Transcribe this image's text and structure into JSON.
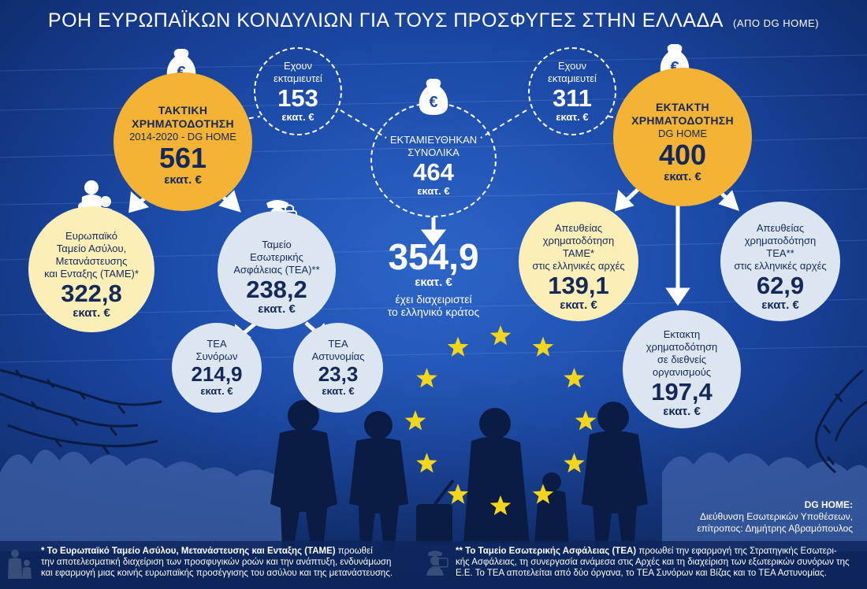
{
  "title": {
    "main": "ΡΟΗ ΕΥΡΩΠΑΪΚΩΝ ΚΟΝΔΥΛΙΩΝ ΓΙΑ ΤΟΥΣ ΠΡΟΣΦΥΓΕΣ ΣΤΗΝ ΕΛΛΑΔΑ",
    "sub": "(ΑΠΟ DG HOME)"
  },
  "regular": {
    "line1": "ΤΑΚΤΙΚΗ",
    "line2": "ΧΡΗΜΑΤΟΔΟΤΗΣΗ",
    "line3": "2014-2020 - DG HOME",
    "value": "561",
    "unit": "εκατ. €"
  },
  "regular_disbursed": {
    "line1": "Εχουν",
    "line2": "εκταμιευτεί",
    "value": "153",
    "unit": "εκατ. €"
  },
  "total": {
    "line1": "ΕΚΤΑΜΙΕΥΘΗΚΑΝ",
    "line2": "ΣΥΝΟΛΙΚΑ",
    "value": "464",
    "unit": "εκατ. €"
  },
  "emergency_disbursed": {
    "line1": "Εχουν",
    "line2": "εκταμιευτεί",
    "value": "311",
    "unit": "εκατ. €"
  },
  "emergency": {
    "line1": "ΕΚΤΑΚΤΗ",
    "line2": "ΧΡΗΜΑΤΟΔΟΤΗΣΗ",
    "line3": "DG HOME",
    "value": "400",
    "unit": "εκατ. €"
  },
  "amif": {
    "line1": "Ευρωπαϊκό",
    "line2": "Ταμείο Ασύλου,",
    "line3": "Μετανάστευσης",
    "line4": "και Ενταξης (ΤΑΜΕ)*",
    "value": "322,8",
    "unit": "εκατ. €"
  },
  "isf": {
    "line1": "Ταμείο",
    "line2": "Εσωτερικής",
    "line3": "Ασφάλειας (ΤΕΑ)**",
    "value": "238,2",
    "unit": "εκατ. €"
  },
  "isf_borders": {
    "line1": "ΤΕΑ",
    "line2": "Συνόρων",
    "value": "214,9",
    "unit": "εκατ. €"
  },
  "isf_police": {
    "line1": "ΤΕΑ",
    "line2": "Αστυνομίας",
    "value": "23,3",
    "unit": "εκατ. €"
  },
  "managed": {
    "value": "354,9",
    "unit": "εκατ. €",
    "line1": "έχει διαχειριστεί",
    "line2": "το ελληνικό κράτος"
  },
  "direct_amif": {
    "line1": "Απευθείας",
    "line2": "χρηματοδότηση",
    "line3": "ΤΑΜΕ*",
    "line4": "στις ελληνικές αρχές",
    "value": "139,1",
    "unit": "εκατ. €"
  },
  "direct_isf": {
    "line1": "Απευθείας",
    "line2": "χρηματοδότηση",
    "line3": "ΤΕΑ**",
    "line4": "στις ελληνικές αρχές",
    "value": "62,9",
    "unit": "εκατ. €"
  },
  "intl_orgs": {
    "line1": "Εκτακτη",
    "line2": "χρηματοδότηση",
    "line3": "σε διεθνείς",
    "line4": "οργανισμούς",
    "value": "197,4",
    "unit": "εκατ. €"
  },
  "dg_home_note": {
    "label": "DG HOME:",
    "line1": "Διεύθυνση Εσωτερικών Υποθέσεων,",
    "line2": "επίτροπος: Δημήτρης Αβραμόπουλος"
  },
  "footnote_amif": {
    "bold": "* Το Ευρωπαϊκό Ταμείο Ασύλου, Μετανάστευσης και Ενταξης (ΤΑΜΕ)",
    "text1": " προωθεί",
    "line2": "την αποτελεσματική διαχείριση των προσφυγικών ροών και την ανάπτυξη, ενδυνάμωση",
    "line3": "και εφαρμογή μιας κοινής ευρωπαϊκής προσέγγισης του ασύλου και της μετανάστευσης."
  },
  "footnote_isf": {
    "bold": "** Το Ταμείο Εσωτερικής Ασφάλειας (ΤΕΑ)",
    "text1": " προωθεί την εφαρμογή της Στρατηγικής Εσωτερι-",
    "line2": "κής Ασφάλειας, τη συνεργασία ανάμεσα στις Αρχές και τη διαχείριση των εξωτερικών συνόρων της",
    "line3": "Ε.Ε. Το ΤΕΑ αποτελείται από δύο όργανα, το ΤΕΑ Συνόρων και Βίζας και το ΤΕΑ Αστυνομίας."
  },
  "icons": {
    "money_bag": "money-bag-euro-icon",
    "family": "family-icon",
    "police": "police-officer-lock-icon",
    "stars": "eu-stars",
    "refugees": "refugee-silhouettes",
    "barbed_wire": "barbed-wire"
  },
  "colors": {
    "background": "#1c4aa8",
    "regular_circle": "#f5b335",
    "direct_amif_circle": "#fbeeb7",
    "fund_circle": "#dbe6f1",
    "star": "#f2d51c",
    "footer": "#0d265c"
  }
}
